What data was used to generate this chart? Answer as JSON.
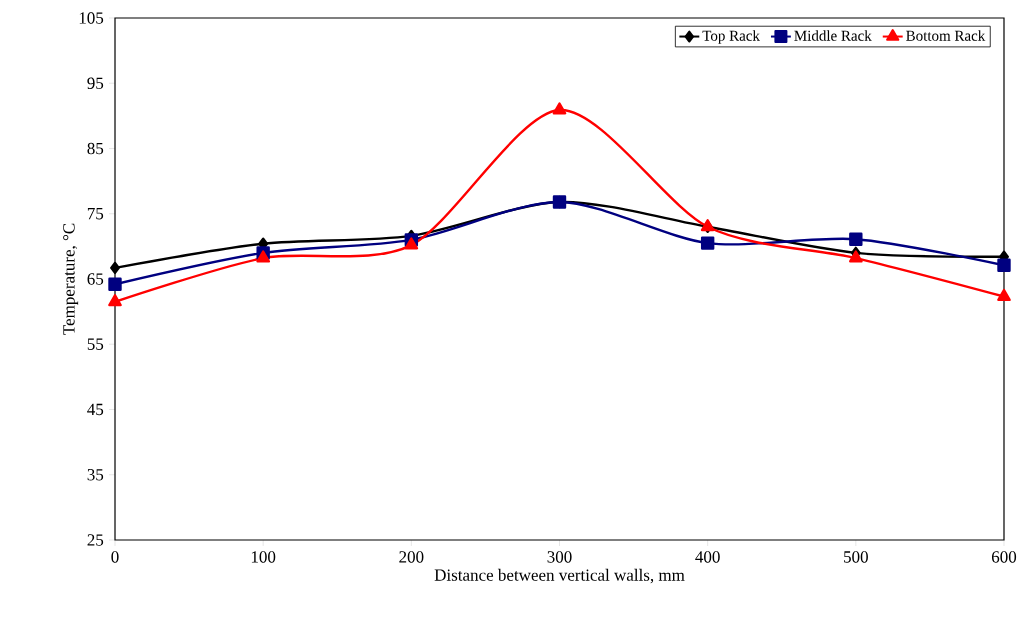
{
  "chart_data": {
    "type": "line",
    "xlabel": "Distance between vertical walls, mm",
    "ylabel": "Temperature, °C",
    "x": [
      0,
      100,
      200,
      300,
      400,
      500,
      600
    ],
    "series": [
      {
        "name": "Top Rack",
        "color": "#000000",
        "marker": "diamond",
        "values": [
          66.7,
          70.4,
          71.6,
          76.8,
          73.0,
          69.0,
          68.4
        ]
      },
      {
        "name": "Middle Rack",
        "color": "#000080",
        "marker": "square",
        "values": [
          64.2,
          69.0,
          71.0,
          76.8,
          70.5,
          71.1,
          67.1
        ]
      },
      {
        "name": "Bottom Rack",
        "color": "#ff0000",
        "marker": "triangle",
        "values": [
          61.5,
          68.2,
          70.2,
          90.9,
          73.0,
          68.2,
          62.3
        ]
      }
    ],
    "xlim": [
      0,
      600
    ],
    "xticks": [
      0,
      100,
      200,
      300,
      400,
      500,
      600
    ],
    "ylim": [
      25,
      105
    ],
    "yticks": [
      25,
      35,
      45,
      55,
      65,
      75,
      85,
      95,
      105
    ],
    "grid": false,
    "legend": "top right",
    "line_style": "solid"
  }
}
